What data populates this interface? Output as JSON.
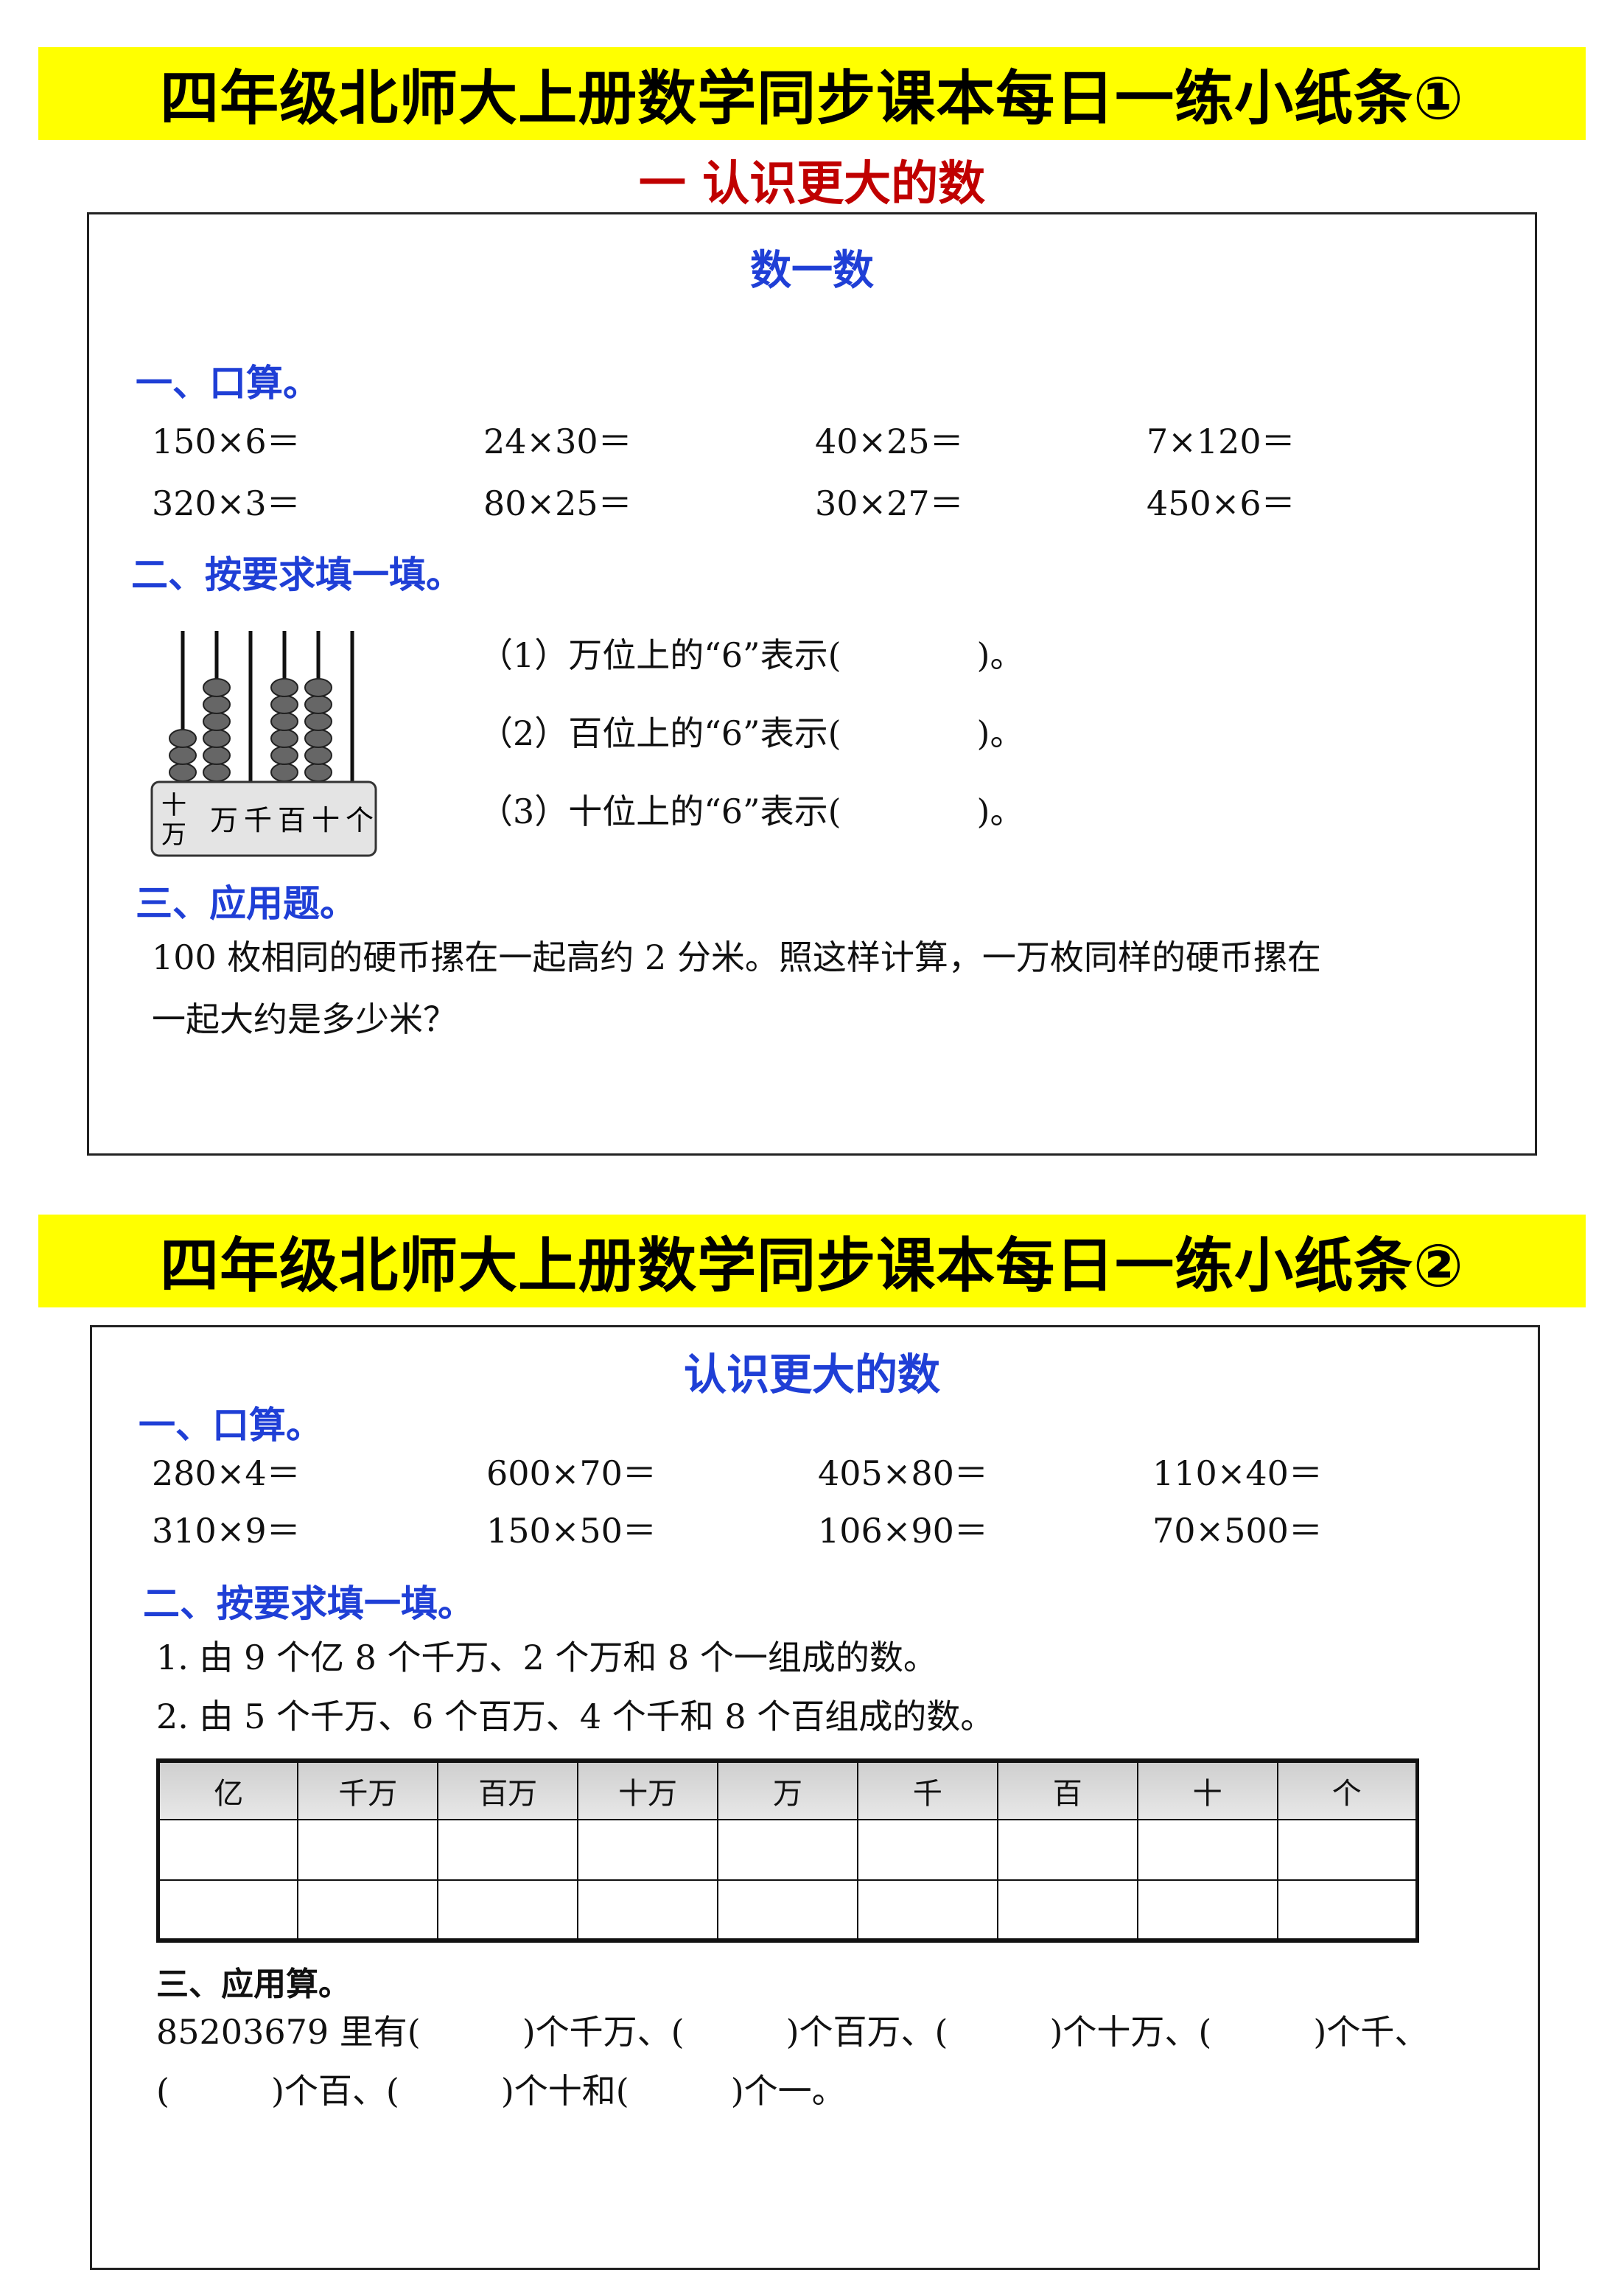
{
  "sheet1": {
    "banner": "四年级北师大上册数学同步课本每日一练小纸条①",
    "unit_title": "一  认识更大的数",
    "lesson_title": "数一数",
    "section1": "一、口算。",
    "calc_rows": [
      [
        "150×6＝",
        "24×30＝",
        "40×25＝",
        "7×120＝"
      ],
      [
        "320×3＝",
        "80×25＝",
        "30×27＝",
        "450×6＝"
      ]
    ],
    "section2": "二、按要求填一填。",
    "abacus": {
      "labels": [
        "十万",
        "万",
        "千",
        "百",
        "十",
        "个"
      ],
      "beads": [
        3,
        6,
        0,
        6,
        6,
        0
      ]
    },
    "questions": [
      "（1）万位上的“6”表示(　　　　)。",
      "（2）百位上的“6”表示(　　　　)。",
      "（3）十位上的“6”表示(　　　　)。"
    ],
    "section3": "三、应用题。",
    "problem_lines": [
      "100 枚相同的硬币摞在一起高约 2 分米。照这样计算，一万枚同样的硬币摞在",
      "一起大约是多少米？"
    ]
  },
  "sheet2": {
    "banner": "四年级北师大上册数学同步课本每日一练小纸条②",
    "lesson_title": "认识更大的数",
    "section1": "一、口算。",
    "calc_rows": [
      [
        "280×4＝",
        "600×70＝",
        "405×80＝",
        "110×40＝"
      ],
      [
        "310×9＝",
        "150×50＝",
        "106×90＝",
        "70×500＝"
      ]
    ],
    "section2": "二、按要求填一填。",
    "items": [
      "1. 由 9 个亿 8 个千万、2 个万和 8 个一组成的数。",
      "2. 由 5 个千万、6 个百万、4 个千和 8 个百组成的数。"
    ],
    "table_headers": [
      "亿",
      "千万",
      "百万",
      "十万",
      "万",
      "千",
      "百",
      "十",
      "个"
    ],
    "section3": "三、应用算。",
    "problem_lines": [
      "85203679 里有(　　　)个千万、(　　　)个百万、(　　　)个十万、(　　　)个千、",
      "(　　　)个百、(　　　)个十和(　　　)个一。"
    ]
  },
  "colors": {
    "banner": "#ffff00",
    "heading_blue": "#1f3fd6",
    "unit_red": "#c00000"
  }
}
